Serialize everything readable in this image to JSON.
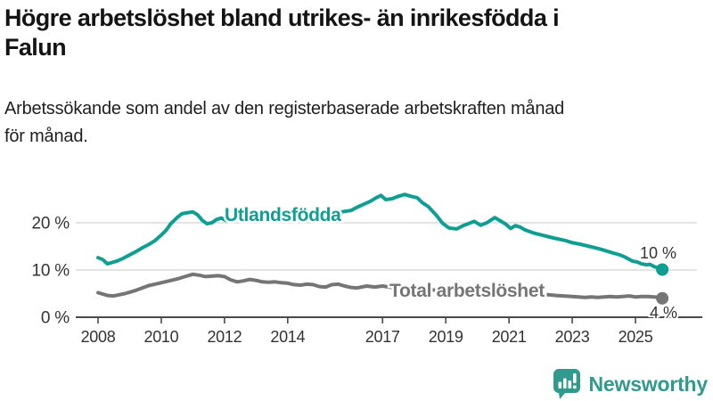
{
  "page": {
    "title_lines": [
      "Högre arbetslöshet bland utrikes- än inrikesfödda i",
      "Falun"
    ],
    "subtitle_lines": [
      "Arbetssökande som andel av den registerbaserade arbetskraften månad",
      "för månad."
    ]
  },
  "branding": {
    "logo_text": "Newsworthy",
    "logo_color": "#2f9a8d",
    "logo_icon": "bar-chart-speech-bubble-icon"
  },
  "chart_data": {
    "type": "line",
    "title": "Högre arbetslöshet bland utrikes- än inrikesfödda i Falun",
    "subtitle": "Arbetssökande som andel av den registerbaserade arbetskraften månad för månad.",
    "xlabel": "",
    "ylabel": "",
    "grid": "horizontal",
    "legend_position": "inline-labels",
    "xlim": [
      2007.3,
      2027.1
    ],
    "ylim": [
      0,
      27.5
    ],
    "colors": {
      "axis": "#4a4a4a",
      "gridline": "#dcdcdc",
      "tick_text": "#333333"
    },
    "x_ticks": [
      {
        "year": 2008,
        "label": "2008"
      },
      {
        "year": 2010,
        "label": "2010"
      },
      {
        "year": 2012,
        "label": "2012"
      },
      {
        "year": 2014,
        "label": "2014"
      },
      {
        "year": 2017,
        "label": "2017"
      },
      {
        "year": 2019,
        "label": "2019"
      },
      {
        "year": 2021,
        "label": "2021"
      },
      {
        "year": 2023,
        "label": "2023"
      },
      {
        "year": 2025,
        "label": "2025"
      }
    ],
    "y_ticks": [
      {
        "value": 0,
        "label": "0 %"
      },
      {
        "value": 10,
        "label": "10 %"
      },
      {
        "value": 20,
        "label": "20 %"
      }
    ],
    "series": [
      {
        "name": "Utlandsfödda",
        "color": "#0f9e92",
        "end_label": "10 %",
        "end_value": 10,
        "points": [
          [
            2008.0,
            12.6
          ],
          [
            2008.15,
            12.2
          ],
          [
            2008.3,
            11.3
          ],
          [
            2008.45,
            11.6
          ],
          [
            2008.6,
            11.9
          ],
          [
            2008.8,
            12.5
          ],
          [
            2009.0,
            13.2
          ],
          [
            2009.2,
            13.9
          ],
          [
            2009.4,
            14.7
          ],
          [
            2009.6,
            15.4
          ],
          [
            2009.8,
            16.2
          ],
          [
            2010.0,
            17.4
          ],
          [
            2010.15,
            18.4
          ],
          [
            2010.3,
            19.8
          ],
          [
            2010.5,
            21.1
          ],
          [
            2010.65,
            21.9
          ],
          [
            2010.8,
            22.1
          ],
          [
            2011.0,
            22.3
          ],
          [
            2011.15,
            21.7
          ],
          [
            2011.3,
            20.5
          ],
          [
            2011.45,
            19.8
          ],
          [
            2011.6,
            20.0
          ],
          [
            2011.75,
            20.7
          ],
          [
            2011.9,
            21.0
          ],
          [
            2012.05,
            20.5
          ],
          [
            2012.2,
            20.6
          ],
          [
            2012.4,
            21.0
          ],
          [
            2012.6,
            20.8
          ],
          [
            2012.8,
            21.0
          ],
          [
            2013.0,
            20.9
          ],
          [
            2013.3,
            21.1
          ],
          [
            2013.6,
            21.0
          ],
          [
            2013.9,
            21.2
          ],
          [
            2014.2,
            21.3
          ],
          [
            2014.5,
            21.5
          ],
          [
            2014.8,
            21.7
          ],
          [
            2015.1,
            21.9
          ],
          [
            2015.4,
            22.1
          ],
          [
            2015.7,
            22.3
          ],
          [
            2016.0,
            22.6
          ],
          [
            2016.2,
            23.3
          ],
          [
            2016.4,
            23.9
          ],
          [
            2016.6,
            24.5
          ],
          [
            2016.8,
            25.3
          ],
          [
            2016.95,
            25.8
          ],
          [
            2017.1,
            24.9
          ],
          [
            2017.3,
            25.1
          ],
          [
            2017.5,
            25.6
          ],
          [
            2017.7,
            26.0
          ],
          [
            2017.9,
            25.6
          ],
          [
            2018.1,
            25.3
          ],
          [
            2018.25,
            24.3
          ],
          [
            2018.45,
            23.4
          ],
          [
            2018.7,
            21.6
          ],
          [
            2018.9,
            19.9
          ],
          [
            2019.1,
            18.9
          ],
          [
            2019.35,
            18.7
          ],
          [
            2019.55,
            19.4
          ],
          [
            2019.75,
            19.9
          ],
          [
            2019.9,
            20.3
          ],
          [
            2020.1,
            19.5
          ],
          [
            2020.3,
            20.0
          ],
          [
            2020.55,
            21.1
          ],
          [
            2020.75,
            20.3
          ],
          [
            2020.9,
            19.7
          ],
          [
            2021.05,
            18.8
          ],
          [
            2021.2,
            19.4
          ],
          [
            2021.35,
            19.1
          ],
          [
            2021.5,
            18.5
          ],
          [
            2021.8,
            17.8
          ],
          [
            2022.1,
            17.3
          ],
          [
            2022.4,
            16.8
          ],
          [
            2022.8,
            16.2
          ],
          [
            2023.0,
            15.8
          ],
          [
            2023.3,
            15.4
          ],
          [
            2023.6,
            14.9
          ],
          [
            2023.9,
            14.4
          ],
          [
            2024.2,
            13.8
          ],
          [
            2024.5,
            13.2
          ],
          [
            2024.65,
            12.8
          ],
          [
            2024.9,
            11.9
          ],
          [
            2025.05,
            11.7
          ],
          [
            2025.2,
            11.3
          ],
          [
            2025.35,
            11.1
          ],
          [
            2025.45,
            11.2
          ],
          [
            2025.6,
            10.7
          ],
          [
            2025.75,
            10.4
          ],
          [
            2025.85,
            10.1
          ]
        ]
      },
      {
        "name": "Total arbetslöshet",
        "color": "#757575",
        "end_label": "4 %",
        "end_value": 4,
        "points": [
          [
            2008.0,
            5.2
          ],
          [
            2008.15,
            4.9
          ],
          [
            2008.3,
            4.6
          ],
          [
            2008.5,
            4.5
          ],
          [
            2008.7,
            4.8
          ],
          [
            2008.85,
            5.0
          ],
          [
            2009.0,
            5.3
          ],
          [
            2009.2,
            5.7
          ],
          [
            2009.4,
            6.2
          ],
          [
            2009.6,
            6.7
          ],
          [
            2009.8,
            7.0
          ],
          [
            2010.0,
            7.3
          ],
          [
            2010.25,
            7.7
          ],
          [
            2010.5,
            8.1
          ],
          [
            2010.75,
            8.6
          ],
          [
            2011.0,
            9.1
          ],
          [
            2011.2,
            8.9
          ],
          [
            2011.4,
            8.6
          ],
          [
            2011.6,
            8.7
          ],
          [
            2011.8,
            8.8
          ],
          [
            2012.0,
            8.6
          ],
          [
            2012.2,
            7.9
          ],
          [
            2012.4,
            7.5
          ],
          [
            2012.6,
            7.7
          ],
          [
            2012.8,
            8.0
          ],
          [
            2013.0,
            7.8
          ],
          [
            2013.2,
            7.5
          ],
          [
            2013.4,
            7.4
          ],
          [
            2013.6,
            7.5
          ],
          [
            2013.8,
            7.3
          ],
          [
            2014.0,
            7.2
          ],
          [
            2014.2,
            6.9
          ],
          [
            2014.4,
            6.8
          ],
          [
            2014.6,
            7.0
          ],
          [
            2014.8,
            6.9
          ],
          [
            2015.0,
            6.5
          ],
          [
            2015.2,
            6.4
          ],
          [
            2015.4,
            6.9
          ],
          [
            2015.6,
            7.0
          ],
          [
            2015.8,
            6.6
          ],
          [
            2016.0,
            6.3
          ],
          [
            2016.2,
            6.2
          ],
          [
            2016.5,
            6.6
          ],
          [
            2016.75,
            6.4
          ],
          [
            2017.0,
            6.6
          ],
          [
            2017.3,
            6.3
          ],
          [
            2017.6,
            6.2
          ],
          [
            2018.0,
            6.0
          ],
          [
            2018.5,
            5.8
          ],
          [
            2019.0,
            5.6
          ],
          [
            2019.5,
            5.5
          ],
          [
            2020.0,
            5.7
          ],
          [
            2020.3,
            6.3
          ],
          [
            2020.6,
            6.2
          ],
          [
            2021.0,
            5.8
          ],
          [
            2021.5,
            5.3
          ],
          [
            2022.0,
            4.9
          ],
          [
            2022.5,
            4.6
          ],
          [
            2023.0,
            4.4
          ],
          [
            2023.2,
            4.3
          ],
          [
            2023.4,
            4.2
          ],
          [
            2023.6,
            4.3
          ],
          [
            2023.8,
            4.2
          ],
          [
            2024.0,
            4.3
          ],
          [
            2024.2,
            4.4
          ],
          [
            2024.4,
            4.3
          ],
          [
            2024.6,
            4.4
          ],
          [
            2024.8,
            4.5
          ],
          [
            2025.0,
            4.3
          ],
          [
            2025.2,
            4.4
          ],
          [
            2025.4,
            4.4
          ],
          [
            2025.6,
            4.3
          ],
          [
            2025.75,
            4.2
          ],
          [
            2025.85,
            4.0
          ]
        ]
      }
    ]
  }
}
